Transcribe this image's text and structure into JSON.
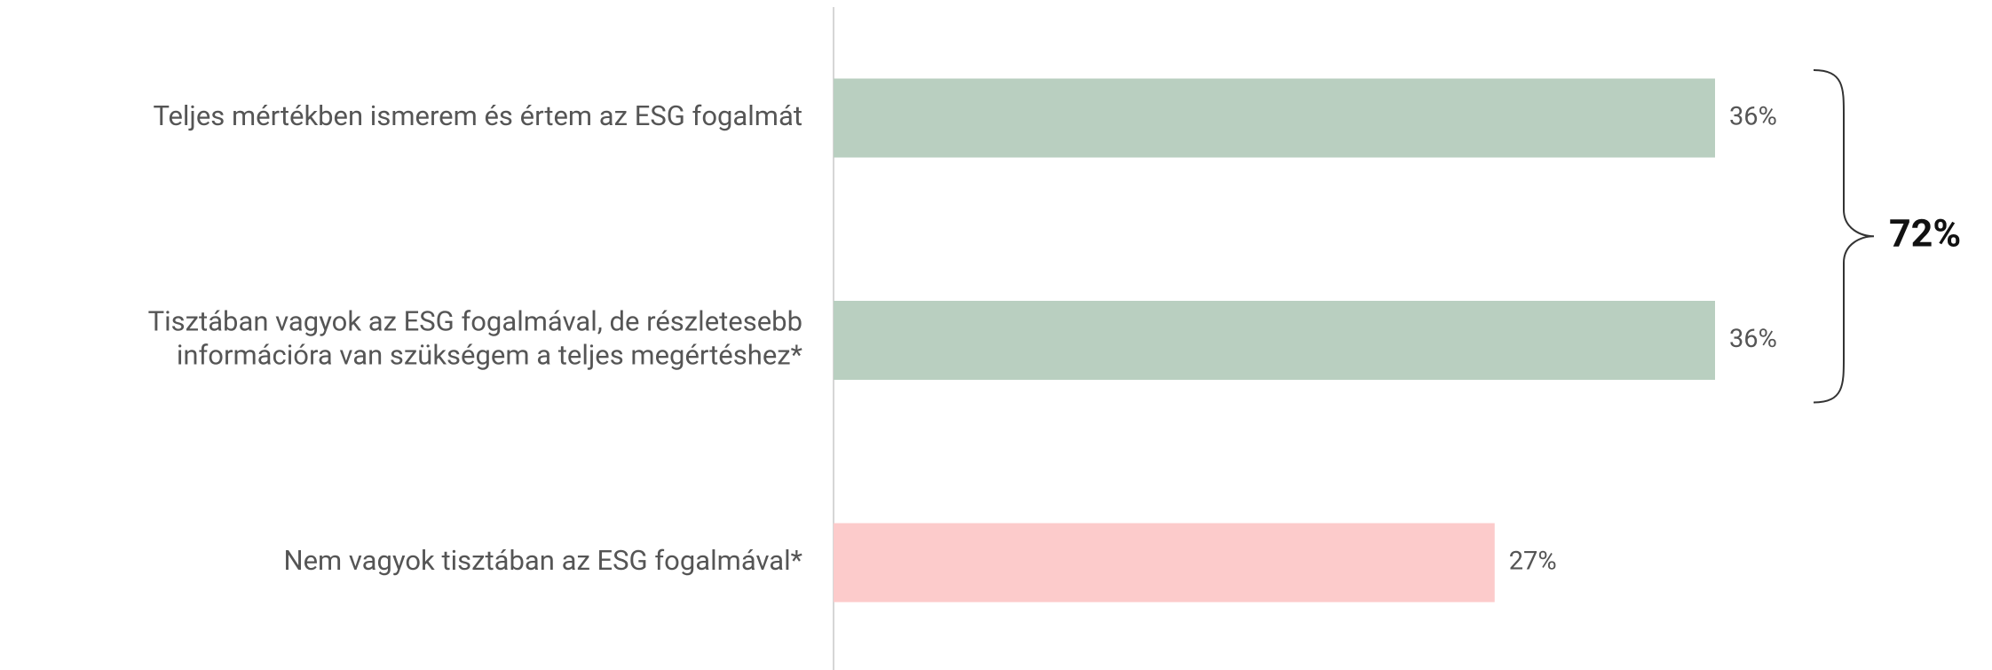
{
  "chart_data": {
    "type": "bar",
    "orientation": "horizontal",
    "categories": [
      "Teljes mértékben ismerem és értem az ESG fogalmát",
      "Tisztában vagyok az ESG fogalmával, de részletesebb\ninformációra van szükségem a teljes megértéshez*",
      "Nem vagyok tisztában az ESG fogalmával*"
    ],
    "values": [
      36,
      36,
      27
    ],
    "value_labels": [
      "36%",
      "36%",
      "27%"
    ],
    "colors": [
      "#b9cfc0",
      "#b9cfc0",
      "#fccbcb"
    ],
    "annotations": [
      {
        "text": "72%",
        "spans": [
          0,
          1
        ]
      }
    ]
  }
}
